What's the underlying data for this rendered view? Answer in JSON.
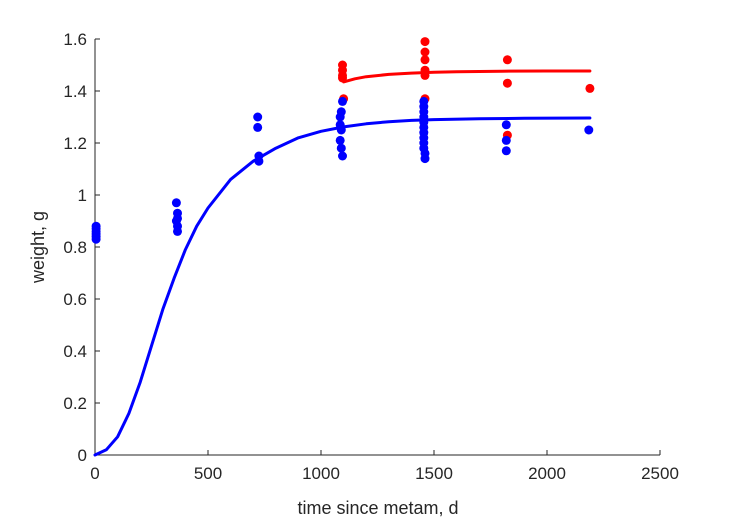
{
  "chart_data": {
    "type": "scatter",
    "title": "",
    "xlabel": "time since metam, d",
    "ylabel": "weight, g",
    "xlim": [
      0,
      2500
    ],
    "ylim": [
      0,
      1.6
    ],
    "xticks": [
      0,
      500,
      1000,
      1500,
      2000,
      2500
    ],
    "xtick_labels": [
      "0",
      "500",
      "1000",
      "1500",
      "2000",
      "2500"
    ],
    "yticks": [
      0,
      0.2,
      0.4,
      0.6,
      0.8,
      1.0,
      1.2,
      1.4,
      1.6
    ],
    "ytick_labels": [
      "0",
      "0.2",
      "0.4",
      "0.6",
      "0.8",
      "1",
      "1.2",
      "1.4",
      "1.6"
    ],
    "grid": false,
    "legend": "none",
    "series": [
      {
        "color": "#ff0000",
        "kind": "points",
        "points": [
          [
            1095,
            1.5
          ],
          [
            1095,
            1.48
          ],
          [
            1095,
            1.46
          ],
          [
            1095,
            1.45
          ],
          [
            1100,
            1.37
          ],
          [
            1460,
            1.59
          ],
          [
            1460,
            1.55
          ],
          [
            1460,
            1.52
          ],
          [
            1460,
            1.48
          ],
          [
            1460,
            1.46
          ],
          [
            1460,
            1.37
          ],
          [
            1825,
            1.52
          ],
          [
            1825,
            1.43
          ],
          [
            1825,
            1.23
          ],
          [
            2190,
            1.41
          ]
        ]
      },
      {
        "color": "#0000ff",
        "kind": "points",
        "points": [
          [
            5,
            0.88
          ],
          [
            5,
            0.87
          ],
          [
            5,
            0.86
          ],
          [
            5,
            0.85
          ],
          [
            5,
            0.84
          ],
          [
            5,
            0.83
          ],
          [
            360,
            0.97
          ],
          [
            365,
            0.93
          ],
          [
            365,
            0.91
          ],
          [
            360,
            0.9
          ],
          [
            365,
            0.88
          ],
          [
            365,
            0.86
          ],
          [
            720,
            1.3
          ],
          [
            720,
            1.26
          ],
          [
            725,
            1.15
          ],
          [
            725,
            1.13
          ],
          [
            1085,
            1.3
          ],
          [
            1090,
            1.32
          ],
          [
            1095,
            1.36
          ],
          [
            1085,
            1.27
          ],
          [
            1090,
            1.25
          ],
          [
            1085,
            1.21
          ],
          [
            1090,
            1.18
          ],
          [
            1095,
            1.15
          ],
          [
            1455,
            1.36
          ],
          [
            1455,
            1.34
          ],
          [
            1455,
            1.32
          ],
          [
            1455,
            1.3
          ],
          [
            1455,
            1.28
          ],
          [
            1455,
            1.26
          ],
          [
            1455,
            1.24
          ],
          [
            1455,
            1.22
          ],
          [
            1455,
            1.2
          ],
          [
            1455,
            1.18
          ],
          [
            1460,
            1.16
          ],
          [
            1460,
            1.14
          ],
          [
            1820,
            1.27
          ],
          [
            1820,
            1.21
          ],
          [
            1820,
            1.17
          ],
          [
            2185,
            1.25
          ]
        ]
      },
      {
        "color": "#ff0000",
        "kind": "line",
        "points": [
          [
            1100,
            1.435
          ],
          [
            1150,
            1.447
          ],
          [
            1200,
            1.455
          ],
          [
            1300,
            1.464
          ],
          [
            1400,
            1.469
          ],
          [
            1500,
            1.472
          ],
          [
            1600,
            1.474
          ],
          [
            1800,
            1.476
          ],
          [
            2000,
            1.477
          ],
          [
            2190,
            1.477
          ]
        ]
      },
      {
        "color": "#0000ff",
        "kind": "line",
        "points": [
          [
            0,
            0.0
          ],
          [
            50,
            0.02
          ],
          [
            100,
            0.07
          ],
          [
            150,
            0.16
          ],
          [
            200,
            0.28
          ],
          [
            250,
            0.42
          ],
          [
            300,
            0.56
          ],
          [
            350,
            0.68
          ],
          [
            400,
            0.79
          ],
          [
            450,
            0.88
          ],
          [
            500,
            0.95
          ],
          [
            600,
            1.06
          ],
          [
            700,
            1.13
          ],
          [
            800,
            1.18
          ],
          [
            900,
            1.22
          ],
          [
            1000,
            1.245
          ],
          [
            1100,
            1.262
          ],
          [
            1200,
            1.274
          ],
          [
            1300,
            1.282
          ],
          [
            1400,
            1.287
          ],
          [
            1500,
            1.29
          ],
          [
            1700,
            1.293
          ],
          [
            1900,
            1.295
          ],
          [
            2190,
            1.296
          ]
        ]
      }
    ]
  }
}
